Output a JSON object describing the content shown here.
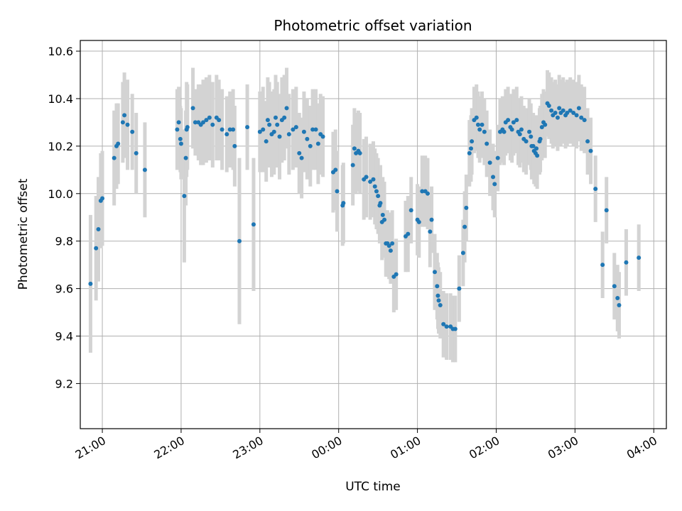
{
  "chart_data": {
    "type": "scatter",
    "title": "Photometric offset variation",
    "xlabel": "UTC time",
    "ylabel": "Photometric offset",
    "x_unit": "hours (UTC, continuing past midnight)",
    "xlim": [
      20.72,
      28.16
    ],
    "ylim": [
      9.01,
      10.645
    ],
    "x_ticks": [
      {
        "value": 21,
        "label": "21:00"
      },
      {
        "value": 22,
        "label": "22:00"
      },
      {
        "value": 23,
        "label": "23:00"
      },
      {
        "value": 24,
        "label": "00:00"
      },
      {
        "value": 25,
        "label": "01:00"
      },
      {
        "value": 26,
        "label": "02:00"
      },
      {
        "value": 27,
        "label": "03:00"
      },
      {
        "value": 28,
        "label": "04:00"
      }
    ],
    "y_ticks": [
      {
        "value": 9.2,
        "label": "9.2"
      },
      {
        "value": 9.4,
        "label": "9.4"
      },
      {
        "value": 9.6,
        "label": "9.6"
      },
      {
        "value": 9.8,
        "label": "9.8"
      },
      {
        "value": 10.0,
        "label": "10.0"
      },
      {
        "value": 10.2,
        "label": "10.2"
      },
      {
        "value": 10.4,
        "label": "10.4"
      },
      {
        "value": 10.6,
        "label": "10.6"
      }
    ],
    "grid": true,
    "legend": "none",
    "colors": {
      "marker": "#1f77b4",
      "error_bar": "#d3d3d3",
      "grid": "#b0b0b0"
    },
    "points": [
      [
        20.85,
        9.62,
        0.29
      ],
      [
        20.92,
        9.77,
        0.22
      ],
      [
        20.95,
        9.85,
        0.22
      ],
      [
        20.98,
        9.97,
        0.2
      ],
      [
        21.0,
        9.98,
        0.2
      ],
      [
        21.15,
        10.15,
        0.2
      ],
      [
        21.18,
        10.2,
        0.18
      ],
      [
        21.2,
        10.21,
        0.17
      ],
      [
        21.26,
        10.3,
        0.17
      ],
      [
        21.28,
        10.33,
        0.18
      ],
      [
        21.32,
        10.29,
        0.19
      ],
      [
        21.38,
        10.26,
        0.16
      ],
      [
        21.43,
        10.17,
        0.17
      ],
      [
        21.54,
        10.1,
        0.2
      ],
      [
        21.95,
        10.27,
        0.17
      ],
      [
        21.97,
        10.3,
        0.15
      ],
      [
        21.99,
        10.23,
        0.14
      ],
      [
        22.0,
        10.21,
        0.15
      ],
      [
        22.04,
        9.99,
        0.28
      ],
      [
        22.06,
        10.15,
        0.2
      ],
      [
        22.07,
        10.27,
        0.2
      ],
      [
        22.08,
        10.28,
        0.18
      ],
      [
        22.15,
        10.36,
        0.17
      ],
      [
        22.18,
        10.3,
        0.14
      ],
      [
        22.22,
        10.3,
        0.16
      ],
      [
        22.25,
        10.29,
        0.17
      ],
      [
        22.28,
        10.3,
        0.18
      ],
      [
        22.32,
        10.31,
        0.18
      ],
      [
        22.36,
        10.32,
        0.18
      ],
      [
        22.4,
        10.29,
        0.18
      ],
      [
        22.45,
        10.32,
        0.18
      ],
      [
        22.48,
        10.31,
        0.17
      ],
      [
        22.52,
        10.27,
        0.17
      ],
      [
        22.58,
        10.25,
        0.16
      ],
      [
        22.62,
        10.27,
        0.16
      ],
      [
        22.66,
        10.27,
        0.17
      ],
      [
        22.68,
        10.2,
        0.17
      ],
      [
        22.74,
        9.8,
        0.35
      ],
      [
        22.84,
        10.28,
        0.18
      ],
      [
        22.92,
        9.87,
        0.28
      ],
      [
        23.0,
        10.26,
        0.17
      ],
      [
        23.04,
        10.27,
        0.18
      ],
      [
        23.08,
        10.22,
        0.17
      ],
      [
        23.1,
        10.31,
        0.18
      ],
      [
        23.12,
        10.29,
        0.18
      ],
      [
        23.15,
        10.25,
        0.18
      ],
      [
        23.18,
        10.26,
        0.18
      ],
      [
        23.2,
        10.32,
        0.18
      ],
      [
        23.22,
        10.29,
        0.18
      ],
      [
        23.25,
        10.24,
        0.18
      ],
      [
        23.28,
        10.31,
        0.18
      ],
      [
        23.31,
        10.32,
        0.18
      ],
      [
        23.34,
        10.36,
        0.17
      ],
      [
        23.37,
        10.25,
        0.17
      ],
      [
        23.42,
        10.27,
        0.17
      ],
      [
        23.46,
        10.28,
        0.17
      ],
      [
        23.5,
        10.17,
        0.17
      ],
      [
        23.53,
        10.15,
        0.17
      ],
      [
        23.56,
        10.26,
        0.17
      ],
      [
        23.6,
        10.23,
        0.17
      ],
      [
        23.64,
        10.2,
        0.17
      ],
      [
        23.67,
        10.27,
        0.17
      ],
      [
        23.71,
        10.27,
        0.17
      ],
      [
        23.74,
        10.21,
        0.17
      ],
      [
        23.77,
        10.25,
        0.17
      ],
      [
        23.8,
        10.24,
        0.17
      ],
      [
        23.93,
        10.09,
        0.17
      ],
      [
        23.96,
        10.1,
        0.17
      ],
      [
        23.98,
        10.01,
        0.17
      ],
      [
        24.05,
        9.95,
        0.17
      ],
      [
        24.06,
        9.96,
        0.17
      ],
      [
        24.18,
        10.12,
        0.17
      ],
      [
        24.2,
        10.19,
        0.17
      ],
      [
        24.22,
        10.17,
        0.17
      ],
      [
        24.25,
        10.18,
        0.17
      ],
      [
        24.27,
        10.17,
        0.17
      ],
      [
        24.32,
        10.06,
        0.17
      ],
      [
        24.35,
        10.07,
        0.17
      ],
      [
        24.4,
        10.05,
        0.16
      ],
      [
        24.44,
        10.06,
        0.16
      ],
      [
        24.46,
        10.03,
        0.16
      ],
      [
        24.48,
        10.01,
        0.16
      ],
      [
        24.5,
        9.99,
        0.16
      ],
      [
        24.52,
        9.95,
        0.16
      ],
      [
        24.53,
        9.96,
        0.16
      ],
      [
        24.55,
        9.88,
        0.16
      ],
      [
        24.56,
        9.91,
        0.16
      ],
      [
        24.58,
        9.89,
        0.16
      ],
      [
        24.6,
        9.79,
        0.14
      ],
      [
        24.62,
        9.79,
        0.14
      ],
      [
        24.64,
        9.78,
        0.14
      ],
      [
        24.66,
        9.76,
        0.14
      ],
      [
        24.68,
        9.79,
        0.14
      ],
      [
        24.7,
        9.65,
        0.15
      ],
      [
        24.73,
        9.66,
        0.15
      ],
      [
        24.85,
        9.82,
        0.15
      ],
      [
        24.88,
        9.83,
        0.16
      ],
      [
        24.92,
        9.93,
        0.14
      ],
      [
        25.0,
        9.89,
        0.15
      ],
      [
        25.02,
        9.88,
        0.15
      ],
      [
        25.06,
        10.01,
        0.15
      ],
      [
        25.1,
        10.01,
        0.15
      ],
      [
        25.13,
        10.0,
        0.15
      ],
      [
        25.16,
        9.84,
        0.15
      ],
      [
        25.18,
        9.89,
        0.14
      ],
      [
        25.22,
        9.67,
        0.16
      ],
      [
        25.25,
        9.61,
        0.14
      ],
      [
        25.26,
        9.57,
        0.14
      ],
      [
        25.27,
        9.55,
        0.14
      ],
      [
        25.29,
        9.53,
        0.14
      ],
      [
        25.33,
        9.45,
        0.14
      ],
      [
        25.37,
        9.44,
        0.14
      ],
      [
        25.42,
        9.44,
        0.14
      ],
      [
        25.45,
        9.43,
        0.14
      ],
      [
        25.48,
        9.43,
        0.14
      ],
      [
        25.53,
        9.6,
        0.14
      ],
      [
        25.58,
        9.75,
        0.14
      ],
      [
        25.6,
        9.86,
        0.15
      ],
      [
        25.62,
        9.94,
        0.14
      ],
      [
        25.66,
        10.17,
        0.14
      ],
      [
        25.68,
        10.19,
        0.14
      ],
      [
        25.69,
        10.22,
        0.14
      ],
      [
        25.72,
        10.31,
        0.14
      ],
      [
        25.75,
        10.32,
        0.14
      ],
      [
        25.77,
        10.29,
        0.14
      ],
      [
        25.79,
        10.27,
        0.14
      ],
      [
        25.82,
        10.29,
        0.14
      ],
      [
        25.85,
        10.26,
        0.14
      ],
      [
        25.88,
        10.21,
        0.14
      ],
      [
        25.92,
        10.13,
        0.14
      ],
      [
        25.96,
        10.07,
        0.14
      ],
      [
        25.98,
        10.04,
        0.14
      ],
      [
        26.02,
        10.15,
        0.14
      ],
      [
        26.05,
        10.26,
        0.14
      ],
      [
        26.08,
        10.27,
        0.14
      ],
      [
        26.1,
        10.26,
        0.14
      ],
      [
        26.12,
        10.3,
        0.14
      ],
      [
        26.15,
        10.31,
        0.14
      ],
      [
        26.18,
        10.28,
        0.14
      ],
      [
        26.2,
        10.27,
        0.14
      ],
      [
        26.22,
        10.3,
        0.14
      ],
      [
        26.26,
        10.31,
        0.14
      ],
      [
        26.28,
        10.26,
        0.14
      ],
      [
        26.3,
        10.25,
        0.14
      ],
      [
        26.32,
        10.27,
        0.14
      ],
      [
        26.35,
        10.23,
        0.14
      ],
      [
        26.38,
        10.22,
        0.14
      ],
      [
        26.42,
        10.26,
        0.14
      ],
      [
        26.44,
        10.24,
        0.14
      ],
      [
        26.45,
        10.2,
        0.14
      ],
      [
        26.47,
        10.2,
        0.14
      ],
      [
        26.48,
        10.18,
        0.14
      ],
      [
        26.5,
        10.17,
        0.14
      ],
      [
        26.51,
        10.19,
        0.14
      ],
      [
        26.52,
        10.16,
        0.14
      ],
      [
        26.55,
        10.22,
        0.14
      ],
      [
        26.56,
        10.23,
        0.14
      ],
      [
        26.58,
        10.28,
        0.14
      ],
      [
        26.6,
        10.3,
        0.14
      ],
      [
        26.62,
        10.29,
        0.14
      ],
      [
        26.65,
        10.38,
        0.14
      ],
      [
        26.67,
        10.37,
        0.14
      ],
      [
        26.7,
        10.35,
        0.14
      ],
      [
        26.72,
        10.33,
        0.14
      ],
      [
        26.75,
        10.34,
        0.14
      ],
      [
        26.78,
        10.32,
        0.14
      ],
      [
        26.8,
        10.36,
        0.14
      ],
      [
        26.82,
        10.34,
        0.14
      ],
      [
        26.85,
        10.35,
        0.14
      ],
      [
        26.88,
        10.33,
        0.14
      ],
      [
        26.9,
        10.34,
        0.14
      ],
      [
        26.94,
        10.35,
        0.14
      ],
      [
        26.98,
        10.34,
        0.14
      ],
      [
        27.02,
        10.33,
        0.14
      ],
      [
        27.05,
        10.36,
        0.14
      ],
      [
        27.08,
        10.32,
        0.14
      ],
      [
        27.12,
        10.31,
        0.14
      ],
      [
        27.16,
        10.22,
        0.14
      ],
      [
        27.2,
        10.18,
        0.14
      ],
      [
        27.26,
        10.02,
        0.14
      ],
      [
        27.35,
        9.7,
        0.14
      ],
      [
        27.4,
        9.93,
        0.14
      ],
      [
        27.5,
        9.61,
        0.14
      ],
      [
        27.54,
        9.56,
        0.14
      ],
      [
        27.56,
        9.53,
        0.14
      ],
      [
        27.65,
        9.71,
        0.14
      ],
      [
        27.81,
        9.73,
        0.14
      ]
    ]
  }
}
